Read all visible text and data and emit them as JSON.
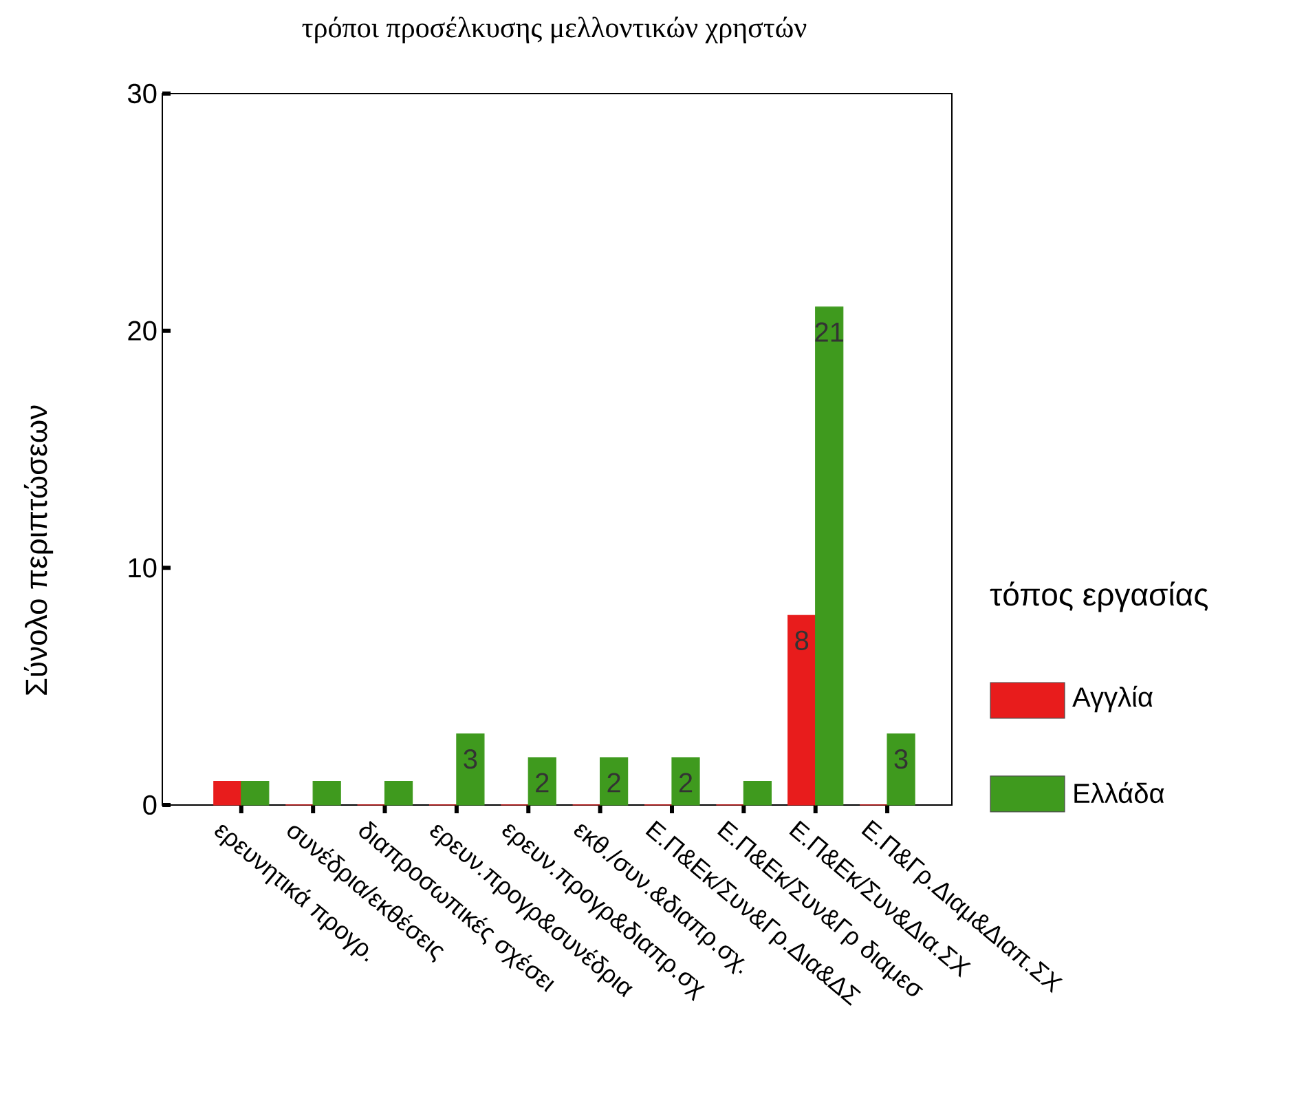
{
  "chart_data": {
    "type": "bar",
    "title": "τρόποι προσέλκυσης μελλοντικών χρηστών",
    "ylabel": "Σύνολο περιπτώσεων",
    "legend_title": "τόπος εργασίας",
    "categories": [
      "ερευνητικά προγρ.",
      "συνέδρια/εκθέσεις",
      "διαπροσωπικές σχέσει",
      "ερευν.προγρ&συνέδρια",
      "ερευν.προγρ&διαπρ.σχ",
      "εκθ./συν.&διαπρ.σχ.",
      "Ε.Π&Εκ/Συν&Γρ.Δια&ΔΣ",
      "Ε.Π&Εκ/Συν&Γρ διαμεσ",
      "Ε.Π&Εκ/Συν&Δια.ΣΧ",
      "Ε.Π&Γρ.Διαμ&Διαπ.ΣΧ"
    ],
    "series": [
      {
        "name": "Αγγλία",
        "color": "#e81c1c",
        "values": [
          1,
          0,
          0,
          0,
          0,
          0,
          0,
          0,
          8,
          0
        ],
        "value_labels": [
          null,
          null,
          null,
          null,
          null,
          null,
          null,
          null,
          "8",
          null
        ]
      },
      {
        "name": "Ελλάδα",
        "color": "#3f9a1e",
        "values": [
          1,
          1,
          1,
          3,
          2,
          2,
          2,
          1,
          21,
          3
        ],
        "value_labels": [
          null,
          null,
          null,
          "3",
          "2",
          "2",
          "2",
          null,
          "21",
          "3"
        ]
      }
    ],
    "ylim": [
      0,
      30
    ],
    "yticks": [
      0,
      10,
      20,
      30
    ],
    "grid": false,
    "legend": "right"
  }
}
